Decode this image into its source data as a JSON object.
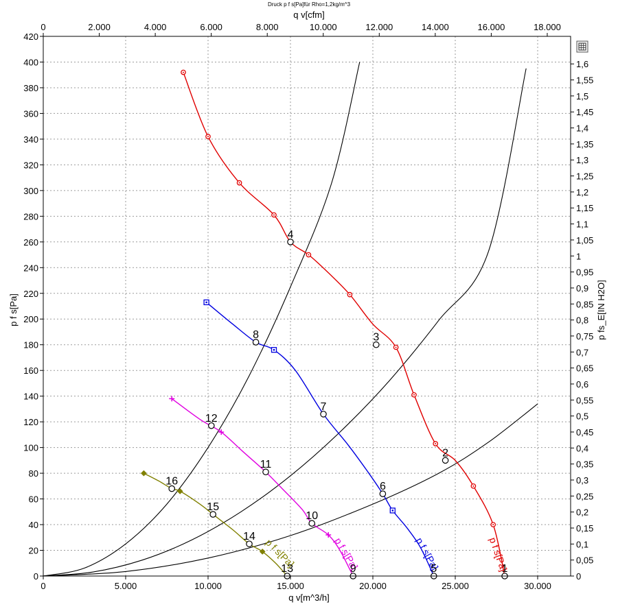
{
  "title": "Druck p f s[Pa]für Rho=1,2kg/m^3",
  "tool_icon": "grid-table-icon",
  "chart_data": {
    "type": "line",
    "title": "Druck p f s[Pa]für Rho=1,2kg/m^3",
    "xlabel": "q v[m^3/h]",
    "xlabel_top": "q v[cfm]",
    "ylabel": "p f s[Pa]",
    "ylabel_right": "p fs_E[IN H2O]",
    "xlim": [
      0,
      32000
    ],
    "ylim": [
      0,
      420
    ],
    "grid": true,
    "x_ticks": [
      0,
      5000,
      10000,
      15000,
      20000,
      25000,
      30000
    ],
    "x_tick_labels": [
      "0",
      "5.000",
      "10.000",
      "15.000",
      "20.000",
      "25.000",
      "30.000"
    ],
    "x_top_ticks": [
      0,
      2000,
      4000,
      6000,
      8000,
      10000,
      12000,
      14000,
      16000,
      18000
    ],
    "x_top_tick_labels": [
      "0",
      "2.000",
      "4.000",
      "6.000",
      "8.000",
      "10.000",
      "12.000",
      "14.000",
      "16.000",
      "18.000"
    ],
    "y_ticks": [
      0,
      20,
      40,
      60,
      80,
      100,
      120,
      140,
      160,
      180,
      200,
      220,
      240,
      260,
      280,
      300,
      320,
      340,
      360,
      380,
      400,
      420
    ],
    "y_tick_labels": [
      "0",
      "20",
      "40",
      "60",
      "80",
      "100",
      "120",
      "140",
      "160",
      "180",
      "200",
      "220",
      "240",
      "260",
      "280",
      "300",
      "320",
      "340",
      "360",
      "380",
      "400",
      "420"
    ],
    "y_right_ticks": [
      0,
      0.05,
      0.1,
      0.15,
      0.2,
      0.25,
      0.3,
      0.35,
      0.4,
      0.45,
      0.5,
      0.55,
      0.6,
      0.65,
      0.7,
      0.75,
      0.8,
      0.85,
      0.9,
      0.95,
      1.0,
      1.05,
      1.1,
      1.15,
      1.2,
      1.25,
      1.3,
      1.35,
      1.4,
      1.45,
      1.5,
      1.55,
      1.6
    ],
    "y_right_tick_labels": [
      "0",
      "0,05",
      "0,1",
      "0,15",
      "0,2",
      "0,25",
      "0,3",
      "0,35",
      "0,4",
      "0,45",
      "0,5",
      "0,55",
      "0,6",
      "0,65",
      "0,7",
      "0,75",
      "0,8",
      "0,85",
      "0,9",
      "0,95",
      "1",
      "1,05",
      "1,1",
      "1,15",
      "1,2",
      "1,25",
      "1,3",
      "1,35",
      "1,4",
      "1,45",
      "1,5",
      "1,55",
      "1,6"
    ],
    "series": [
      {
        "name": "p f s[Pa]",
        "color": "#e00000",
        "marker": "circle-dot",
        "x": [
          8500,
          10000,
          11900,
          14000,
          15000,
          16100,
          17300,
          18600,
          20000,
          21400,
          22500,
          23800,
          25000,
          26100,
          27300,
          28000
        ],
        "y": [
          392,
          342,
          306,
          281,
          260,
          250,
          236,
          219,
          196,
          178,
          141,
          103,
          90,
          70,
          40,
          0
        ],
        "marker_index": [
          0,
          1,
          2,
          3,
          5,
          7,
          9,
          10,
          11,
          13,
          14
        ]
      },
      {
        "name": "p f s[Pa]",
        "color": "#0000e0",
        "marker": "square-dot",
        "x": [
          9900,
          11500,
          12900,
          14000,
          15300,
          17000,
          18500,
          19700,
          20600,
          21200,
          22100,
          22900,
          23700
        ],
        "y": [
          213,
          196,
          182,
          176,
          160,
          126,
          102,
          81,
          64,
          51,
          37,
          22,
          0
        ],
        "marker_index": [
          0,
          3,
          9
        ]
      },
      {
        "name": "p f s[Pa]",
        "color": "#e000e0",
        "marker": "plus",
        "x": [
          7800,
          9500,
          10800,
          12100,
          13500,
          14500,
          15700,
          16300,
          17300,
          18000,
          18800
        ],
        "y": [
          138,
          122,
          112,
          97,
          81,
          68,
          52,
          41,
          32,
          20,
          0
        ],
        "marker_index": [
          0,
          2,
          8
        ]
      },
      {
        "name": "p f s[Pa]",
        "color": "#808000",
        "marker": "diamond",
        "x": [
          6100,
          7000,
          7800,
          8300,
          9500,
          10300,
          11500,
          12500,
          13300,
          14100,
          14800
        ],
        "y": [
          80,
          74,
          68,
          66,
          56,
          48,
          36,
          25,
          19,
          10,
          0
        ],
        "marker_index": [
          0,
          3,
          8
        ]
      }
    ],
    "system_curves": [
      {
        "name": "",
        "x": [
          0,
          2500,
          5000,
          7500,
          10000,
          12500,
          15000,
          17500,
          19200
        ],
        "y": [
          0,
          6.2,
          25,
          56,
          100,
          156,
          225,
          306,
          400
        ]
      },
      {
        "name": "",
        "x": [
          0,
          3000,
          6000,
          9000,
          12000,
          15000,
          18000,
          21000,
          24000,
          27000,
          29300
        ],
        "y": [
          0,
          3.1,
          12.4,
          28,
          50,
          78,
          112,
          152,
          199,
          252,
          395
        ]
      },
      {
        "name": "",
        "x": [
          0,
          5000,
          10000,
          15000,
          20000,
          24000,
          27000,
          30000
        ],
        "y": [
          0,
          3.5,
          14,
          31.5,
          56,
          80,
          104,
          134
        ]
      }
    ],
    "operating_points": [
      {
        "label": "1",
        "x": 28000,
        "y": 0
      },
      {
        "label": "2",
        "x": 24400,
        "y": 90
      },
      {
        "label": "3",
        "x": 20200,
        "y": 180
      },
      {
        "label": "4",
        "x": 15000,
        "y": 260
      },
      {
        "label": "5",
        "x": 23700,
        "y": 0
      },
      {
        "label": "6",
        "x": 20600,
        "y": 64
      },
      {
        "label": "7",
        "x": 17000,
        "y": 126
      },
      {
        "label": "8",
        "x": 12900,
        "y": 182
      },
      {
        "label": "9",
        "x": 18800,
        "y": 0
      },
      {
        "label": "10",
        "x": 16300,
        "y": 41
      },
      {
        "label": "11",
        "x": 13500,
        "y": 81
      },
      {
        "label": "12",
        "x": 10200,
        "y": 117
      },
      {
        "label": "13",
        "x": 14800,
        "y": 0
      },
      {
        "label": "14",
        "x": 12500,
        "y": 25
      },
      {
        "label": "15",
        "x": 10300,
        "y": 48
      },
      {
        "label": "16",
        "x": 7800,
        "y": 68
      }
    ]
  }
}
